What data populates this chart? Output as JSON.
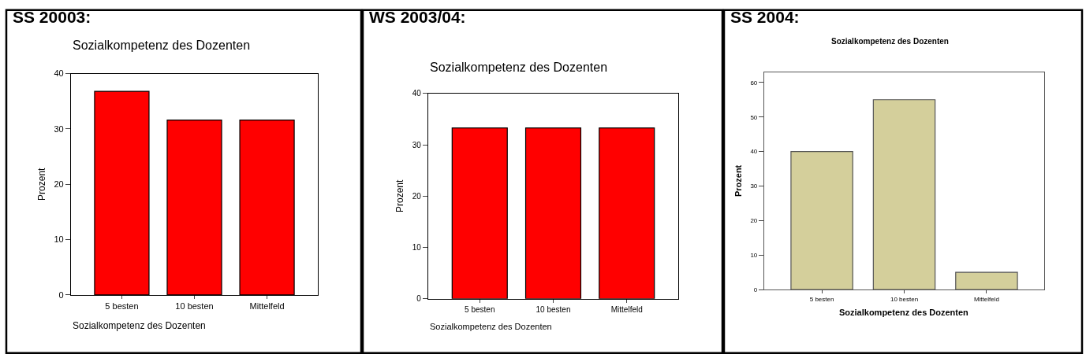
{
  "chart_data": [
    {
      "type": "bar",
      "title": "SS 20003:",
      "subtitle": "Sozialkompetenz des Dozenten",
      "xlabel": "Sozialkompetenz des Dozenten",
      "ylabel": "Prozent",
      "categories": [
        "5 besten",
        "10 besten",
        "Mittelfeld"
      ],
      "values": [
        36.8,
        31.6,
        31.6
      ],
      "color": "#ff0000",
      "ylim": [
        0,
        40
      ],
      "yticks": [
        0,
        10,
        20,
        30,
        40
      ]
    },
    {
      "type": "bar",
      "title": "WS 2003/04:",
      "subtitle": "Sozialkompetenz des Dozenten",
      "xlabel": "Sozialkompetenz des Dozenten",
      "ylabel": "Prozent",
      "categories": [
        "5 besten",
        "10 besten",
        "Mittelfeld"
      ],
      "values": [
        33.3,
        33.3,
        33.3
      ],
      "color": "#ff0000",
      "ylim": [
        0,
        40
      ],
      "yticks": [
        0,
        10,
        20,
        30,
        40
      ]
    },
    {
      "type": "bar",
      "title": "SS 2004:",
      "subtitle": "Sozialkompetenz des Dozenten",
      "xlabel": "Sozialkompetenz des Dozenten",
      "ylabel": "Prozent",
      "categories": [
        "5 besten",
        "10 besten",
        "Mittelfeld"
      ],
      "values": [
        40,
        55,
        5
      ],
      "color": "#d4cf9b",
      "ylim": [
        0,
        63
      ],
      "yticks": [
        0,
        10,
        20,
        30,
        40,
        50,
        60
      ]
    }
  ]
}
